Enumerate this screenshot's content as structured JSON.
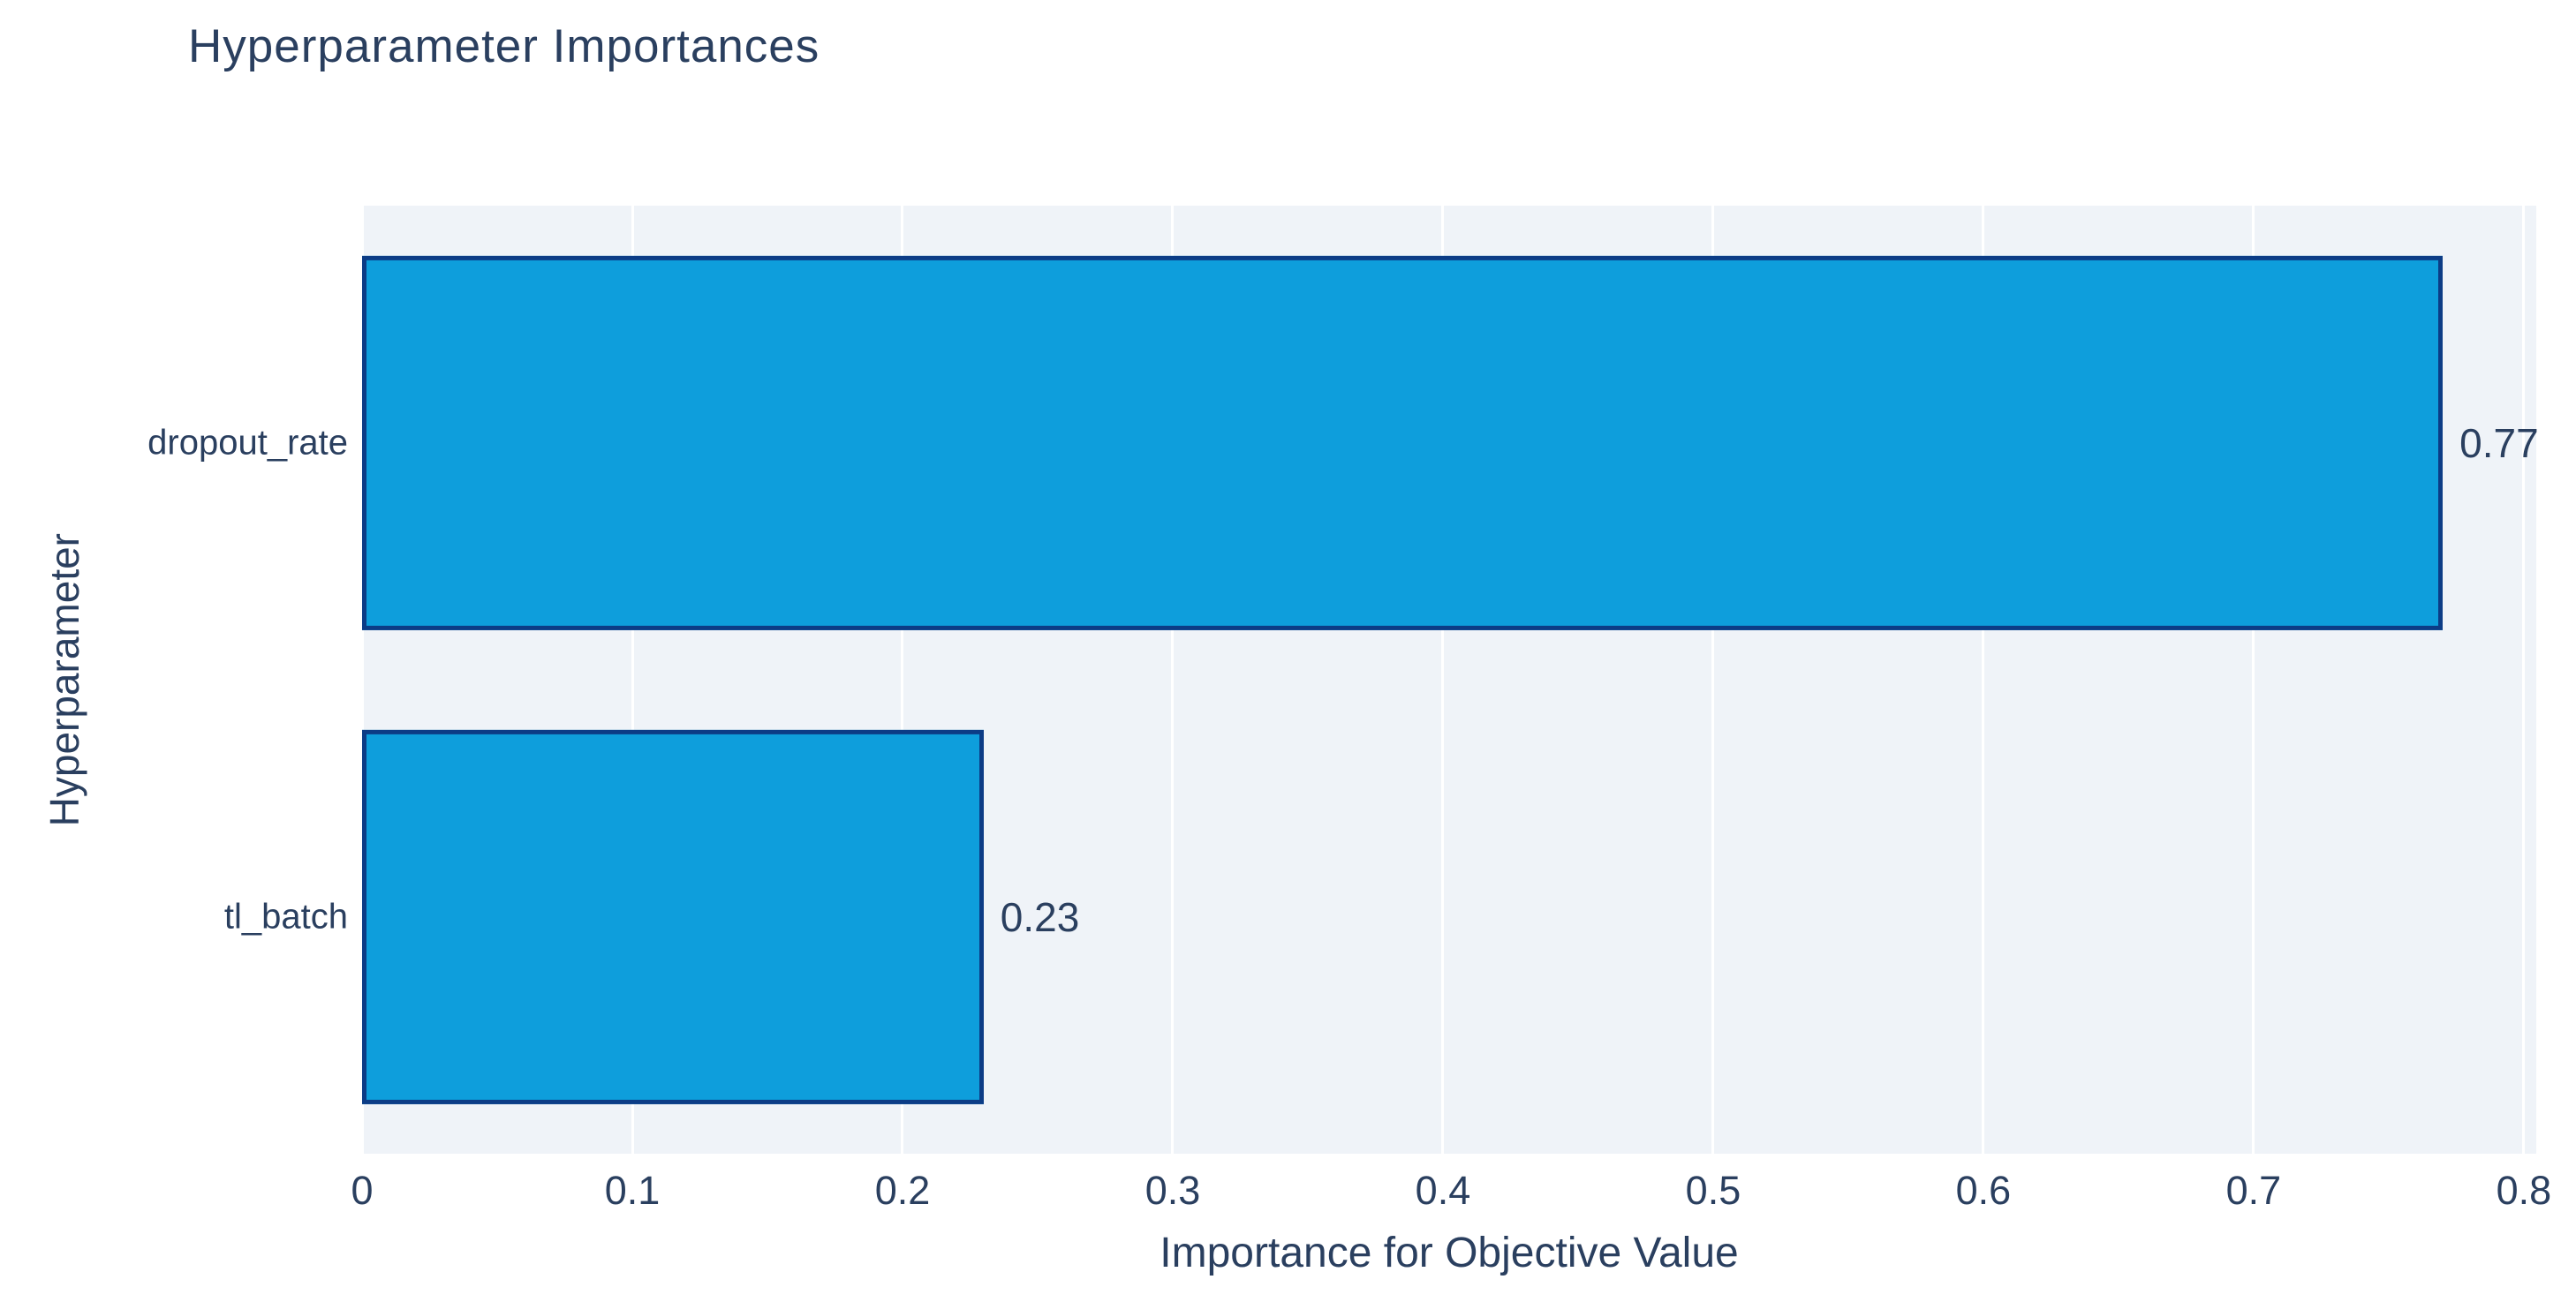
{
  "title": "Hyperparameter Importances",
  "chart_data": {
    "type": "bar",
    "orientation": "horizontal",
    "title": "Hyperparameter Importances",
    "xlabel": "Importance for Objective Value",
    "ylabel": "Hyperparameter",
    "categories": [
      "dropout_rate",
      "tl_batch"
    ],
    "values": [
      0.77,
      0.23
    ],
    "value_labels": [
      "0.77",
      "0.23"
    ],
    "x_ticks": [
      0,
      0.1,
      0.2,
      0.3,
      0.4,
      0.5,
      0.6,
      0.7,
      0.8
    ],
    "x_tick_labels": [
      "0",
      "0.1",
      "0.2",
      "0.3",
      "0.4",
      "0.5",
      "0.6",
      "0.7",
      "0.8"
    ],
    "xlim": [
      0,
      0.8
    ],
    "grid": true,
    "legend": false,
    "colors": {
      "bar_fill": "#0E9EDC",
      "bar_border": "#0C3C86",
      "plot_bg": "#EFF3F8",
      "gridline": "#FFFFFF",
      "text": "#2A3F5F"
    }
  }
}
